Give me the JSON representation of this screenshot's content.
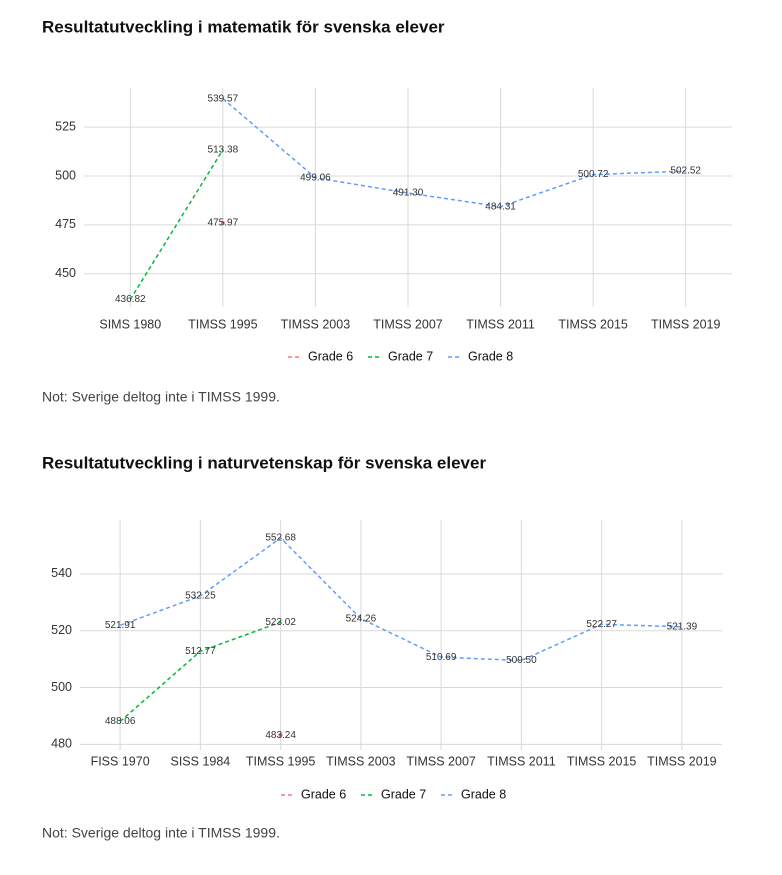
{
  "chart_data": [
    {
      "type": "line",
      "title": "Resultatutveckling i matematik för svenska elever",
      "categories": [
        "SIMS 1980",
        "TIMSS 1995",
        "TIMSS 2003",
        "TIMSS 2007",
        "TIMSS 2011",
        "TIMSS 2015",
        "TIMSS 2019"
      ],
      "series": [
        {
          "name": "Grade 6",
          "color": "#f8766d",
          "values": [
            null,
            475.97,
            null,
            null,
            null,
            null,
            null
          ],
          "value_labels": [
            null,
            "475.97",
            null,
            null,
            null,
            null,
            null
          ]
        },
        {
          "name": "Grade 7",
          "color": "#00ba38",
          "values": [
            436.82,
            513.38,
            null,
            null,
            null,
            null,
            null
          ],
          "value_labels": [
            "436.82",
            "513.38",
            null,
            null,
            null,
            null,
            null
          ]
        },
        {
          "name": "Grade 8",
          "color": "#619cff",
          "values": [
            null,
            539.57,
            499.06,
            491.3,
            484.31,
            500.72,
            502.52
          ],
          "value_labels": [
            null,
            "539.57",
            "499.06",
            "491.30",
            "484.31",
            "500.72",
            "502.52"
          ]
        }
      ],
      "ylim": [
        433,
        545
      ],
      "yticks": [
        450,
        475,
        500,
        525
      ],
      "grid": true,
      "note": "Not: Sverige deltog inte i TIMSS 1999."
    },
    {
      "type": "line",
      "title": "Resultatutveckling i naturvetenskap för svenska elever",
      "categories": [
        "FISS 1970",
        "SISS 1984",
        "TIMSS 1995",
        "TIMSS 2003",
        "TIMSS 2007",
        "TIMSS 2011",
        "TIMSS 2015",
        "TIMSS 2019"
      ],
      "series": [
        {
          "name": "Grade 6",
          "color": "#f8766d",
          "values": [
            null,
            null,
            483.24,
            null,
            null,
            null,
            null,
            null
          ],
          "value_labels": [
            null,
            null,
            "483.24",
            null,
            null,
            null,
            null,
            null
          ]
        },
        {
          "name": "Grade 7",
          "color": "#00ba38",
          "values": [
            488.06,
            512.77,
            523.02,
            null,
            null,
            null,
            null,
            null
          ],
          "value_labels": [
            "488.06",
            "512.77",
            "523.02",
            null,
            null,
            null,
            null,
            null
          ]
        },
        {
          "name": "Grade 8",
          "color": "#619cff",
          "values": [
            521.91,
            532.25,
            552.68,
            524.26,
            510.69,
            509.5,
            522.27,
            521.39
          ],
          "value_labels": [
            "521.91",
            "532.25",
            "552.68",
            "524.26",
            "510.69",
            "509.50",
            "522.27",
            "521.39"
          ]
        }
      ],
      "ylim": [
        478,
        559
      ],
      "yticks": [
        480,
        500,
        520,
        540
      ],
      "grid": true,
      "note": "Not: Sverige deltog inte i TIMSS 1999."
    }
  ]
}
